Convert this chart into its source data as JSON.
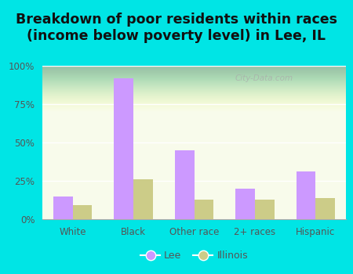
{
  "categories": [
    "White",
    "Black",
    "Other race",
    "2+ races",
    "Hispanic"
  ],
  "lee_values": [
    0.15,
    0.92,
    0.45,
    0.2,
    0.31
  ],
  "illinois_values": [
    0.09,
    0.26,
    0.13,
    0.13,
    0.14
  ],
  "lee_color": "#cc99ff",
  "illinois_color": "#cccc88",
  "background_outer": "#00e5e5",
  "background_plot_top": "#e8f0e0",
  "background_plot_bottom": "#f5faf0",
  "title": "Breakdown of poor residents within races\n(income below poverty level) in Lee, IL",
  "title_fontsize": 12.5,
  "ytick_labels": [
    "0%",
    "25%",
    "50%",
    "75%",
    "100%"
  ],
  "ytick_values": [
    0,
    0.25,
    0.5,
    0.75,
    1.0
  ],
  "legend_labels": [
    "Lee",
    "Illinois"
  ],
  "bar_width": 0.32,
  "watermark": "City-Data.com",
  "tick_color": "#555555",
  "label_fontsize": 8.5
}
